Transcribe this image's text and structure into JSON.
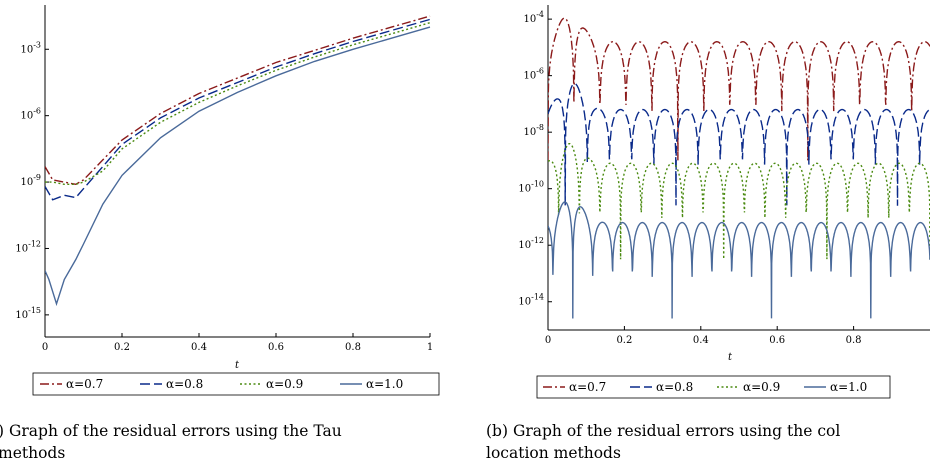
{
  "chart_data": [
    {
      "type": "line",
      "caption": "Graph of the residual errors using the Tau",
      "caption_line2": "methods",
      "xlabel": "t",
      "ylabel": "",
      "log_y": true,
      "xlim": [
        0,
        1
      ],
      "ylim_exp": [
        -16,
        -1
      ],
      "x_ticks": [
        "0",
        "0.2",
        "0.4",
        "0.6",
        "0.8",
        "1"
      ],
      "y_ticks": [
        {
          "base": "10",
          "exp": "-3"
        },
        {
          "base": "10",
          "exp": "-6"
        },
        {
          "base": "10",
          "exp": "-9"
        },
        {
          "base": "10",
          "exp": "-12"
        },
        {
          "base": "10",
          "exp": "-15"
        }
      ],
      "legend_position": "bottom",
      "series": [
        {
          "name": "α=0.7",
          "color": "#8b1a1a",
          "dash": "dash-dot",
          "x": [
            0,
            0.02,
            0.05,
            0.08,
            0.1,
            0.15,
            0.2,
            0.3,
            0.4,
            0.5,
            0.6,
            0.7,
            0.8,
            0.9,
            1.0
          ],
          "log10_y": [
            -8.3,
            -8.9,
            -9.0,
            -9.1,
            -8.9,
            -8.0,
            -7.1,
            -5.9,
            -5.0,
            -4.3,
            -3.6,
            -3.05,
            -2.5,
            -2.0,
            -1.5
          ]
        },
        {
          "name": "α=0.8",
          "color": "#0a2a8a",
          "dash": "long-dash",
          "x": [
            0,
            0.02,
            0.05,
            0.08,
            0.1,
            0.15,
            0.2,
            0.3,
            0.4,
            0.5,
            0.6,
            0.7,
            0.8,
            0.9,
            1.0
          ],
          "log10_y": [
            -9.2,
            -9.8,
            -9.6,
            -9.7,
            -9.3,
            -8.3,
            -7.3,
            -6.1,
            -5.2,
            -4.5,
            -3.8,
            -3.2,
            -2.65,
            -2.15,
            -1.65
          ]
        },
        {
          "name": "α=0.9",
          "color": "#4a8a10",
          "dash": "dotted",
          "x": [
            0,
            0.02,
            0.05,
            0.08,
            0.1,
            0.15,
            0.2,
            0.3,
            0.4,
            0.5,
            0.6,
            0.7,
            0.8,
            0.9,
            1.0
          ],
          "log10_y": [
            -9.0,
            -9.0,
            -9.1,
            -9.1,
            -9.0,
            -8.5,
            -7.5,
            -6.3,
            -5.4,
            -4.65,
            -3.95,
            -3.35,
            -2.8,
            -2.3,
            -1.8
          ]
        },
        {
          "name": "α=1.0",
          "color": "#4a6a9a",
          "dash": "solid",
          "x": [
            0,
            0.01,
            0.03,
            0.05,
            0.08,
            0.1,
            0.15,
            0.2,
            0.3,
            0.4,
            0.5,
            0.6,
            0.7,
            0.8,
            0.9,
            1.0
          ],
          "log10_y": [
            -13.0,
            -13.4,
            -14.5,
            -13.4,
            -12.5,
            -11.8,
            -10.0,
            -8.7,
            -7.0,
            -5.8,
            -4.95,
            -4.2,
            -3.55,
            -3.0,
            -2.5,
            -2.0
          ]
        }
      ]
    },
    {
      "type": "line",
      "caption": "Graph of the residual errors using the col",
      "caption_line2": "location methods",
      "xlabel": "t",
      "ylabel": "",
      "log_y": true,
      "xlim": [
        0,
        1
      ],
      "ylim_exp": [
        -15,
        -3.5
      ],
      "x_ticks": [
        "0",
        "0.2",
        "0.4",
        "0.6",
        "0.8"
      ],
      "y_ticks": [
        {
          "base": "10",
          "exp": "-4"
        },
        {
          "base": "10",
          "exp": "-6"
        },
        {
          "base": "10",
          "exp": "-8"
        },
        {
          "base": "10",
          "exp": "-10"
        },
        {
          "base": "10",
          "exp": "-12"
        },
        {
          "base": "10",
          "exp": "-14"
        }
      ],
      "legend_position": "bottom",
      "series": [
        {
          "name": "α=0.7",
          "color": "#8b1a1a",
          "dash": "dash-dot",
          "level": -4.8,
          "spike": -3.7,
          "notch": -9.0,
          "period": 0.068
        },
        {
          "name": "α=0.8",
          "color": "#0a2a8a",
          "dash": "long-dash",
          "level": -7.2,
          "spike": -6.2,
          "notch": -10.6,
          "period": 0.058
        },
        {
          "name": "α=0.9",
          "color": "#4a8a10",
          "dash": "dotted",
          "level": -9.1,
          "spike": -8.4,
          "notch": -12.5,
          "period": 0.054
        },
        {
          "name": "α=1.0",
          "color": "#4a6a9a",
          "dash": "solid",
          "level": -11.2,
          "spike": -10.3,
          "notch": -14.6,
          "period": 0.052
        }
      ]
    }
  ],
  "captions": {
    "a_label": ")",
    "b_label": "(b)"
  }
}
